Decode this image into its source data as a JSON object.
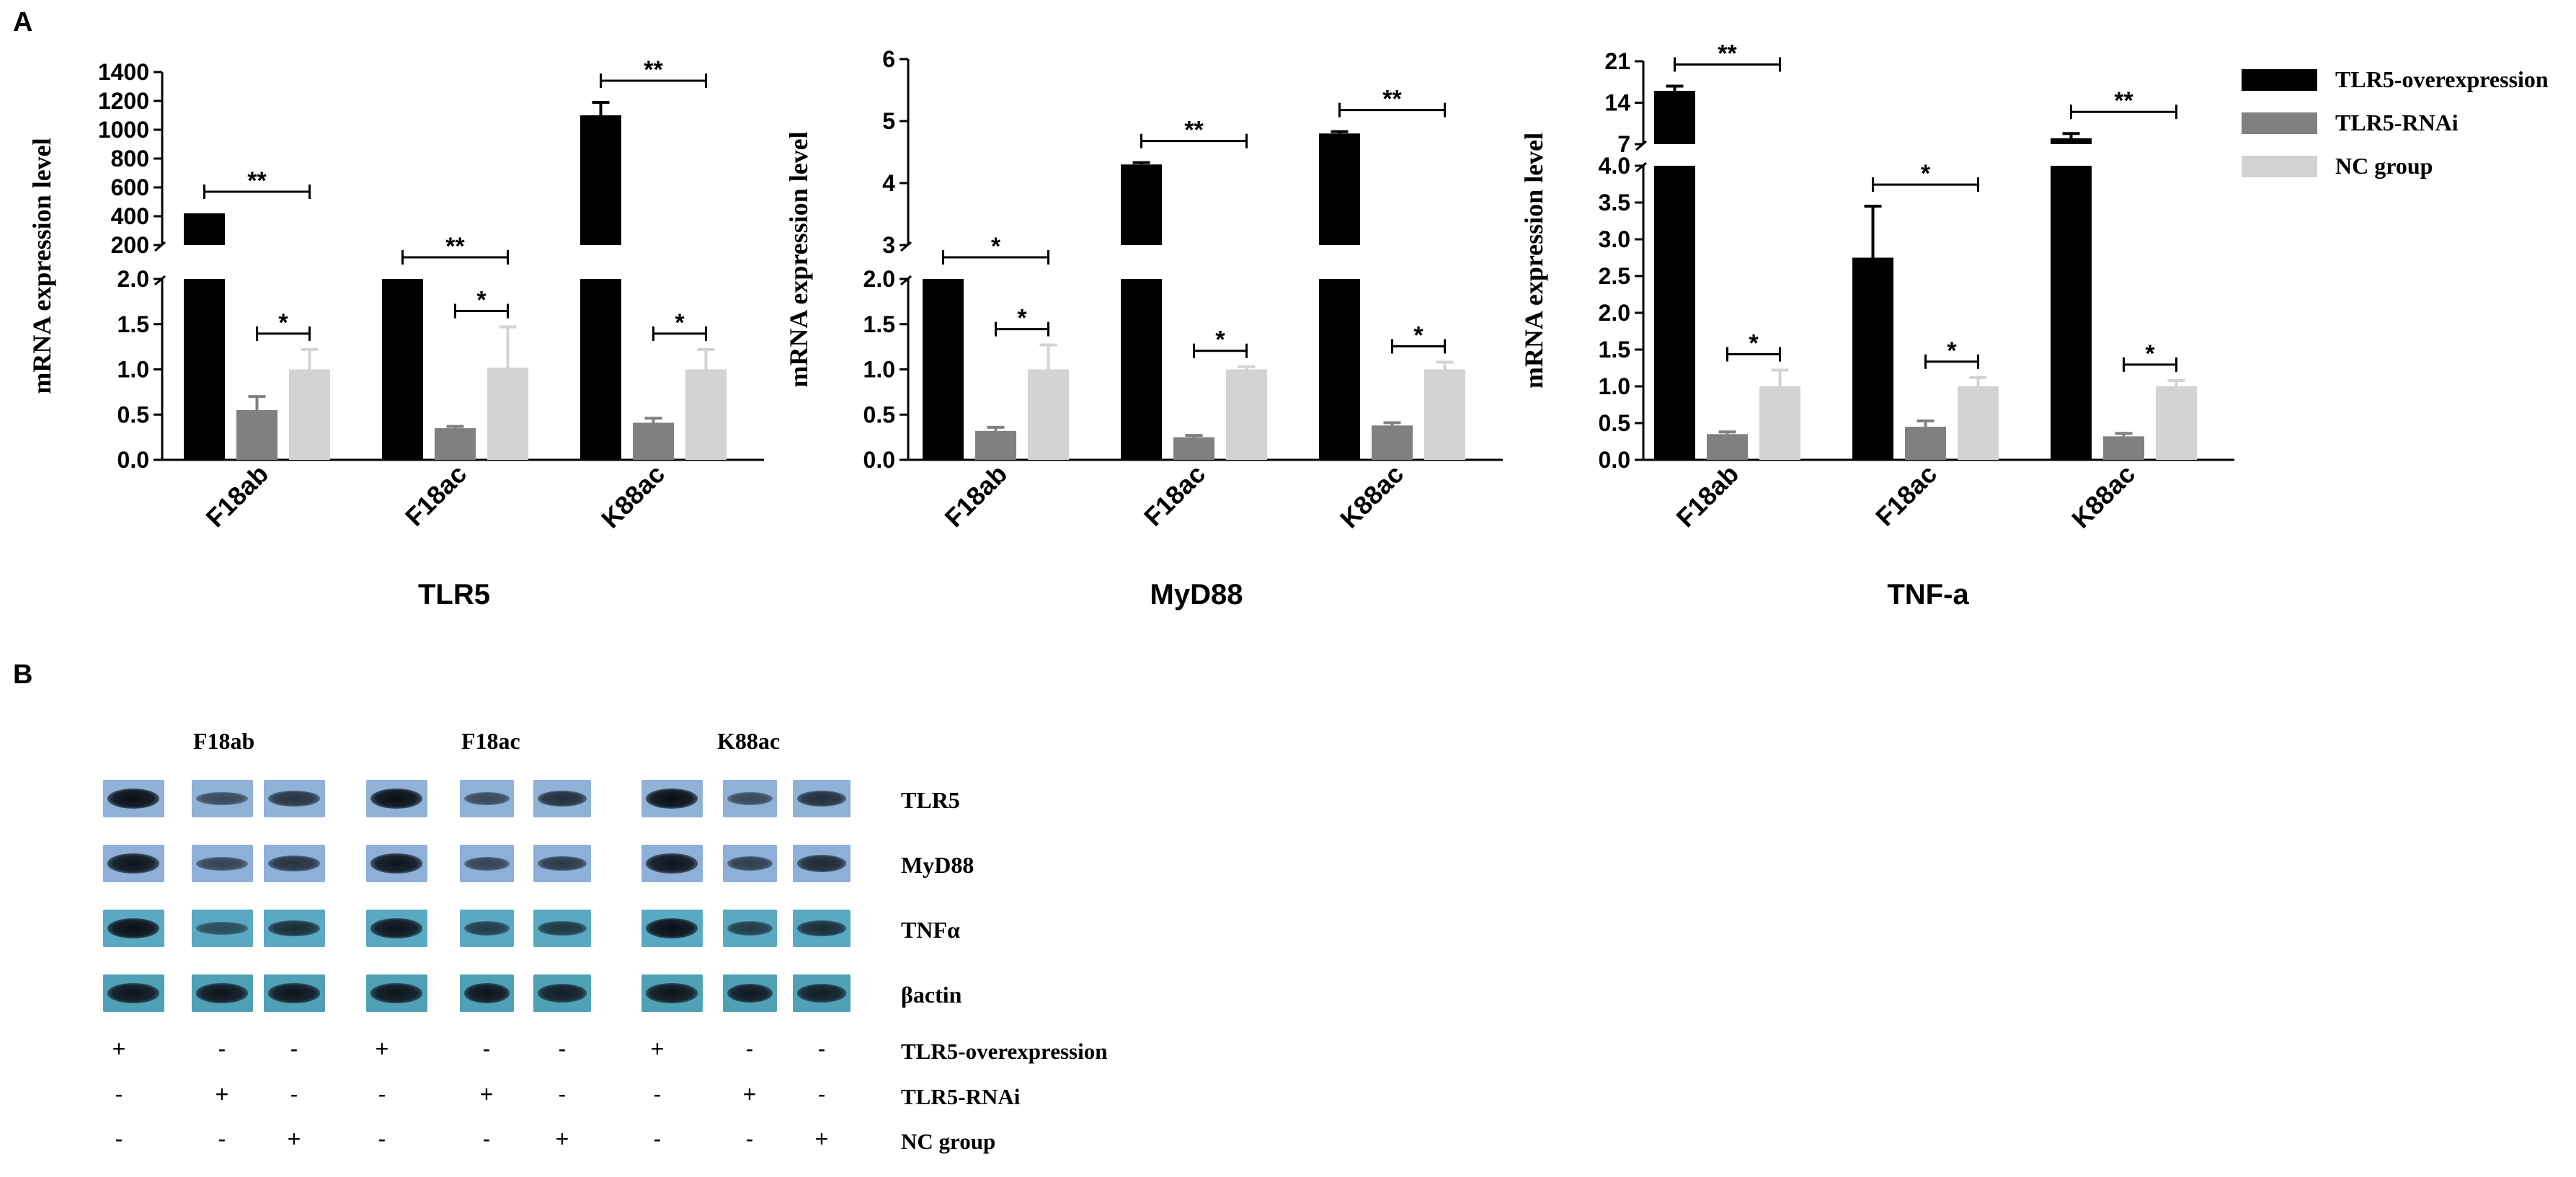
{
  "figure": {
    "panel_a_label": "A",
    "panel_b_label": "B"
  },
  "legend": {
    "items": [
      {
        "label": "TLR5-overexpression",
        "color": "#000000"
      },
      {
        "label": "TLR5-RNAi",
        "color": "#808080"
      },
      {
        "label": "NC group",
        "color": "#d3d3d3"
      }
    ]
  },
  "chart_data": [
    {
      "type": "bar",
      "title": "TLR5",
      "ylabel": "mRNA expression level",
      "categories": [
        "F18ab",
        "F18ac",
        "K88ac"
      ],
      "series": [
        {
          "name": "TLR5-overexpression",
          "values": [
            420,
            2.0,
            1100
          ],
          "errors": [
            0,
            0,
            90
          ]
        },
        {
          "name": "TLR5-RNAi",
          "values": [
            0.55,
            0.35,
            0.41
          ],
          "errors": [
            0.15,
            0.02,
            0.05
          ]
        },
        {
          "name": "NC group",
          "values": [
            1.0,
            1.02,
            1.0
          ],
          "errors": [
            0.22,
            0.45,
            0.22
          ]
        }
      ],
      "broken_axis": {
        "lower": {
          "range": [
            0,
            2.0
          ],
          "ticks": [
            "0.0",
            "0.5",
            "1.0",
            "1.5",
            "2.0"
          ]
        },
        "upper": {
          "range": [
            200,
            1400
          ],
          "ticks": [
            "200",
            "400",
            "600",
            "800",
            "1000",
            "1200",
            "1400"
          ]
        }
      },
      "significance": [
        {
          "group": "F18ab",
          "from": "TLR5-overexpression",
          "to": "NC group",
          "label": "**"
        },
        {
          "group": "F18ab",
          "from": "TLR5-RNAi",
          "to": "NC group",
          "label": "*"
        },
        {
          "group": "F18ac",
          "from": "TLR5-overexpression",
          "to": "NC group",
          "label": "**"
        },
        {
          "group": "F18ac",
          "from": "TLR5-RNAi",
          "to": "NC group",
          "label": "*"
        },
        {
          "group": "K88ac",
          "from": "TLR5-overexpression",
          "to": "NC group",
          "label": "**"
        },
        {
          "group": "K88ac",
          "from": "TLR5-RNAi",
          "to": "NC group",
          "label": "*"
        }
      ]
    },
    {
      "type": "bar",
      "title": "MyD88",
      "ylabel": "mRNA expression level",
      "categories": [
        "F18ab",
        "F18ac",
        "K88ac"
      ],
      "series": [
        {
          "name": "TLR5-overexpression",
          "values": [
            2.0,
            4.3,
            4.8
          ],
          "errors": [
            0,
            0.03,
            0.03
          ]
        },
        {
          "name": "TLR5-RNAi",
          "values": [
            0.32,
            0.25,
            0.38
          ],
          "errors": [
            0.04,
            0.02,
            0.03
          ]
        },
        {
          "name": "NC group",
          "values": [
            1.0,
            1.0,
            1.0
          ],
          "errors": [
            0.27,
            0.03,
            0.08
          ]
        }
      ],
      "broken_axis": {
        "lower": {
          "range": [
            0,
            2.0
          ],
          "ticks": [
            "0.0",
            "0.5",
            "1.0",
            "1.5",
            "2.0"
          ]
        },
        "upper": {
          "range": [
            3,
            6
          ],
          "ticks": [
            "3",
            "4",
            "5",
            "6"
          ]
        }
      },
      "significance": [
        {
          "group": "F18ab",
          "from": "TLR5-overexpression",
          "to": "NC group",
          "label": "*"
        },
        {
          "group": "F18ab",
          "from": "TLR5-RNAi",
          "to": "NC group",
          "label": "*"
        },
        {
          "group": "F18ac",
          "from": "TLR5-overexpression",
          "to": "NC group",
          "label": "**"
        },
        {
          "group": "F18ac",
          "from": "TLR5-RNAi",
          "to": "NC group",
          "label": "*"
        },
        {
          "group": "K88ac",
          "from": "TLR5-overexpression",
          "to": "NC group",
          "label": "**"
        },
        {
          "group": "K88ac",
          "from": "TLR5-RNAi",
          "to": "NC group",
          "label": "*"
        }
      ]
    },
    {
      "type": "bar",
      "title": "TNF-a",
      "ylabel": "mRNA expression level",
      "categories": [
        "F18ab",
        "F18ac",
        "K88ac"
      ],
      "series": [
        {
          "name": "TLR5-overexpression",
          "values": [
            16,
            2.75,
            8
          ],
          "errors": [
            0.8,
            0.7,
            0.8
          ]
        },
        {
          "name": "TLR5-RNAi",
          "values": [
            0.35,
            0.45,
            0.32
          ],
          "errors": [
            0.03,
            0.08,
            0.04
          ]
        },
        {
          "name": "NC group",
          "values": [
            1.0,
            1.0,
            1.0
          ],
          "errors": [
            0.22,
            0.12,
            0.08
          ]
        }
      ],
      "broken_axis": {
        "lower": {
          "range": [
            0,
            4.0
          ],
          "ticks": [
            "0.0",
            "0.5",
            "1.0",
            "1.5",
            "2.0",
            "2.5",
            "3.0",
            "3.5",
            "4.0"
          ]
        },
        "upper": {
          "range": [
            7,
            21
          ],
          "ticks": [
            "7",
            "14",
            "21"
          ]
        }
      },
      "significance": [
        {
          "group": "F18ab",
          "from": "TLR5-overexpression",
          "to": "NC group",
          "label": "**"
        },
        {
          "group": "F18ab",
          "from": "TLR5-RNAi",
          "to": "NC group",
          "label": "*"
        },
        {
          "group": "F18ac",
          "from": "TLR5-overexpression",
          "to": "NC group",
          "label": "*"
        },
        {
          "group": "F18ac",
          "from": "TLR5-RNAi",
          "to": "NC group",
          "label": "*"
        },
        {
          "group": "K88ac",
          "from": "TLR5-overexpression",
          "to": "NC group",
          "label": "**"
        },
        {
          "group": "K88ac",
          "from": "TLR5-RNAi",
          "to": "NC group",
          "label": "*"
        }
      ]
    }
  ],
  "western_blot": {
    "groups": [
      "F18ab",
      "F18ac",
      "K88ac"
    ],
    "proteins": [
      "TLR5",
      "MyD88",
      "TNFα",
      "βactin"
    ],
    "conditions": [
      {
        "label": "TLR5-overexpression",
        "signs": [
          "+",
          "-",
          "-",
          "+",
          "-",
          "-",
          "+",
          "-",
          "-"
        ]
      },
      {
        "label": "TLR5-RNAi",
        "signs": [
          "-",
          "+",
          "-",
          "-",
          "+",
          "-",
          "-",
          "+",
          "-"
        ]
      },
      {
        "label": "NC group",
        "signs": [
          "-",
          "-",
          "+",
          "-",
          "-",
          "+",
          "-",
          "-",
          "+"
        ]
      }
    ],
    "band_intensity": [
      [
        1.0,
        0.45,
        0.65,
        1.0,
        0.45,
        0.7,
        1.0,
        0.45,
        0.7
      ],
      [
        0.95,
        0.5,
        0.65,
        0.95,
        0.5,
        0.6,
        0.95,
        0.55,
        0.75
      ],
      [
        1.0,
        0.4,
        0.7,
        0.95,
        0.55,
        0.6,
        1.0,
        0.55,
        0.7
      ],
      [
        0.95,
        0.95,
        0.95,
        0.95,
        0.95,
        0.85,
        0.95,
        0.9,
        0.85
      ]
    ]
  }
}
